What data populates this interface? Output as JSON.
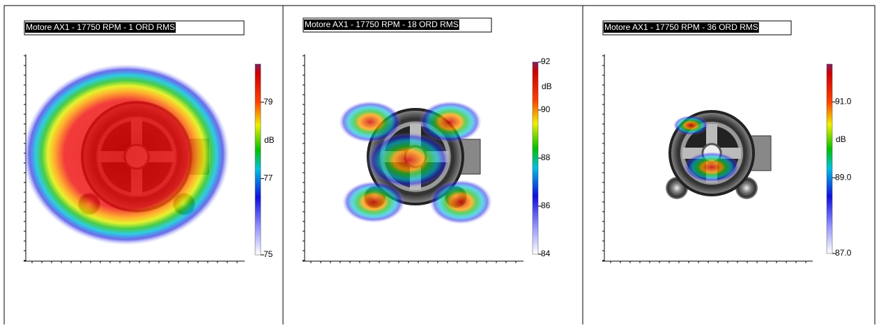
{
  "panels": [
    {
      "title": "Motore AX1 - 17750 RPM - 1 ORD RMS",
      "unit": "dB",
      "clim": [
        75,
        80
      ],
      "cticks": [
        75,
        77,
        79
      ]
    },
    {
      "title": "Motore AX1 - 17750 RPM - 18 ORD RMS",
      "unit": "dB",
      "clim": [
        84,
        92
      ],
      "cticks": [
        84,
        86,
        88,
        90,
        92
      ]
    },
    {
      "title": "Motore AX1 - 17750 RPM - 36 ORD RMS",
      "unit": "dB",
      "clim": [
        87,
        92
      ],
      "cticks": [
        {
          "value": 87,
          "label": "87.0"
        },
        {
          "value": 89,
          "label": "89.0"
        },
        {
          "value": 91,
          "label": "91.0"
        }
      ]
    }
  ]
}
